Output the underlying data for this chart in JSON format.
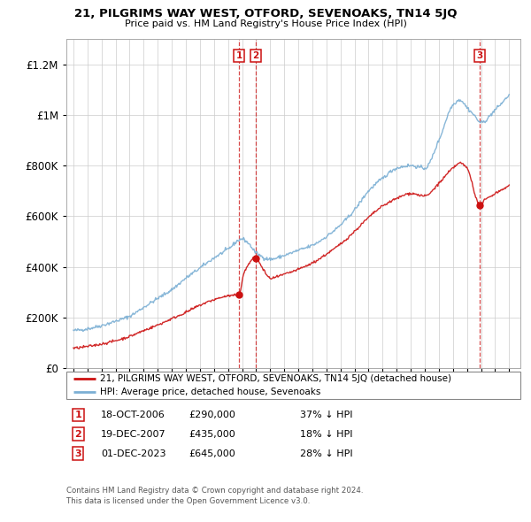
{
  "title": "21, PILGRIMS WAY WEST, OTFORD, SEVENOAKS, TN14 5JQ",
  "subtitle": "Price paid vs. HM Land Registry's House Price Index (HPI)",
  "ylabel_ticks": [
    "£0",
    "£200K",
    "£400K",
    "£600K",
    "£800K",
    "£1M",
    "£1.2M"
  ],
  "ytick_values": [
    0,
    200000,
    400000,
    600000,
    800000,
    1000000,
    1200000
  ],
  "ylim": [
    0,
    1300000
  ],
  "xlim_start": 1994.5,
  "xlim_end": 2026.8,
  "hpi_color": "#7bafd4",
  "price_color": "#cc1111",
  "transactions": [
    {
      "date_num": 2006.79,
      "price": 290000,
      "label": "1",
      "date_str": "18-OCT-2006",
      "pct": "37% ↓ HPI"
    },
    {
      "date_num": 2007.97,
      "price": 435000,
      "label": "2",
      "date_str": "19-DEC-2007",
      "pct": "18% ↓ HPI"
    },
    {
      "date_num": 2023.92,
      "price": 645000,
      "label": "3",
      "date_str": "01-DEC-2023",
      "pct": "28% ↓ HPI"
    }
  ],
  "legend_label_price": "21, PILGRIMS WAY WEST, OTFORD, SEVENOAKS, TN14 5JQ (detached house)",
  "legend_label_hpi": "HPI: Average price, detached house, Sevenoaks",
  "footer1": "Contains HM Land Registry data © Crown copyright and database right 2024.",
  "footer2": "This data is licensed under the Open Government Licence v3.0.",
  "hpi_anchors_x": [
    1995,
    1996,
    1997,
    1998,
    1999,
    2000,
    2001,
    2002,
    2003,
    2004,
    2005,
    2006,
    2007,
    2007.5,
    2008,
    2009,
    2010,
    2011,
    2012,
    2013,
    2014,
    2015,
    2016,
    2017,
    2018,
    2019,
    2020,
    2021,
    2022,
    2022.5,
    2023,
    2023.5,
    2024,
    2025,
    2026
  ],
  "hpi_anchors_y": [
    148000,
    155000,
    168000,
    185000,
    205000,
    240000,
    275000,
    310000,
    355000,
    395000,
    435000,
    470000,
    510000,
    490000,
    455000,
    430000,
    445000,
    465000,
    485000,
    520000,
    565000,
    625000,
    700000,
    750000,
    790000,
    800000,
    790000,
    900000,
    1040000,
    1060000,
    1030000,
    1000000,
    970000,
    1020000,
    1080000
  ],
  "price_anchors_x": [
    1995,
    1996,
    1997,
    1998,
    1999,
    2000,
    2001,
    2002,
    2003,
    2004,
    2005,
    2006,
    2006.79,
    2007.1,
    2007.97,
    2008.5,
    2009,
    2010,
    2011,
    2012,
    2013,
    2014,
    2015,
    2016,
    2017,
    2018,
    2019,
    2020,
    2021,
    2022,
    2022.5,
    2023,
    2023.92,
    2024.2,
    2025,
    2026
  ],
  "price_anchors_y": [
    78000,
    85000,
    95000,
    108000,
    125000,
    148000,
    170000,
    195000,
    220000,
    248000,
    270000,
    285000,
    290000,
    370000,
    435000,
    390000,
    355000,
    370000,
    390000,
    415000,
    450000,
    490000,
    540000,
    595000,
    640000,
    670000,
    690000,
    680000,
    730000,
    790000,
    810000,
    790000,
    645000,
    660000,
    690000,
    720000
  ]
}
